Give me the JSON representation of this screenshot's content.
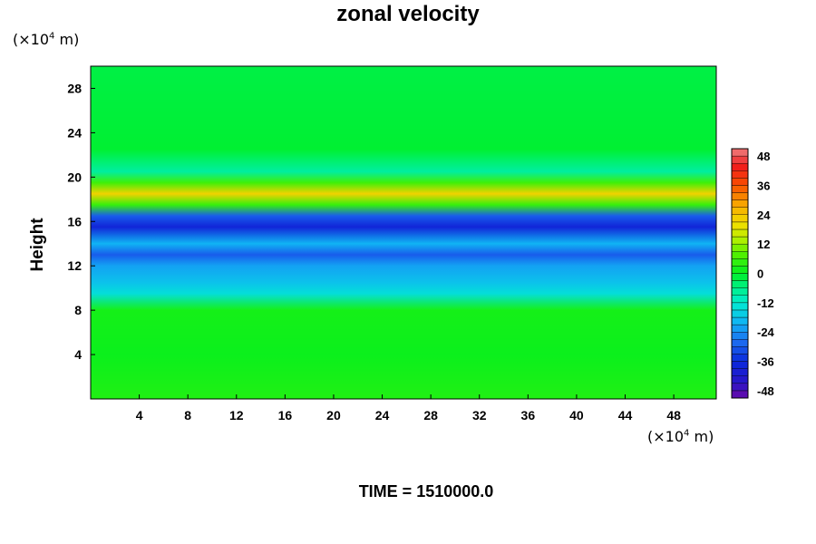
{
  "chart_data": {
    "type": "heatmap",
    "title": "zonal velocity",
    "ylabel": "Height",
    "xlabel": "",
    "x_unit_prefix": "(×10",
    "x_unit_exp": "4",
    "x_unit_suffix": " m)",
    "y_unit_prefix": "(×10",
    "y_unit_exp": "4",
    "y_unit_suffix": " m)",
    "xlim": [
      0,
      51.5
    ],
    "ylim": [
      0,
      30
    ],
    "x_ticks": [
      4,
      8,
      12,
      16,
      20,
      24,
      28,
      32,
      36,
      40,
      44,
      48
    ],
    "y_ticks": [
      4,
      8,
      12,
      16,
      20,
      24,
      28
    ],
    "colorbar": {
      "min": -51,
      "max": 51,
      "ticks": [
        48,
        36,
        24,
        12,
        0,
        -12,
        -24,
        -36,
        -48
      ]
    },
    "field_bands": [
      {
        "y": 0,
        "value": 3
      },
      {
        "y": 4,
        "value": 1
      },
      {
        "y": 8,
        "value": 2
      },
      {
        "y": 9.5,
        "value": -14
      },
      {
        "y": 10.5,
        "value": -18
      },
      {
        "y": 12,
        "value": -22
      },
      {
        "y": 13,
        "value": -30
      },
      {
        "y": 14,
        "value": -20
      },
      {
        "y": 15.5,
        "value": -38
      },
      {
        "y": 16.5,
        "value": -30
      },
      {
        "y": 17.5,
        "value": 5
      },
      {
        "y": 18.5,
        "value": 22
      },
      {
        "y": 19.5,
        "value": 6
      },
      {
        "y": 20.5,
        "value": -8
      },
      {
        "y": 21.5,
        "value": -4
      },
      {
        "y": 22.5,
        "value": -1
      },
      {
        "y": 30,
        "value": -2
      }
    ]
  },
  "footer": {
    "time_label": "TIME = 1510000.0"
  }
}
